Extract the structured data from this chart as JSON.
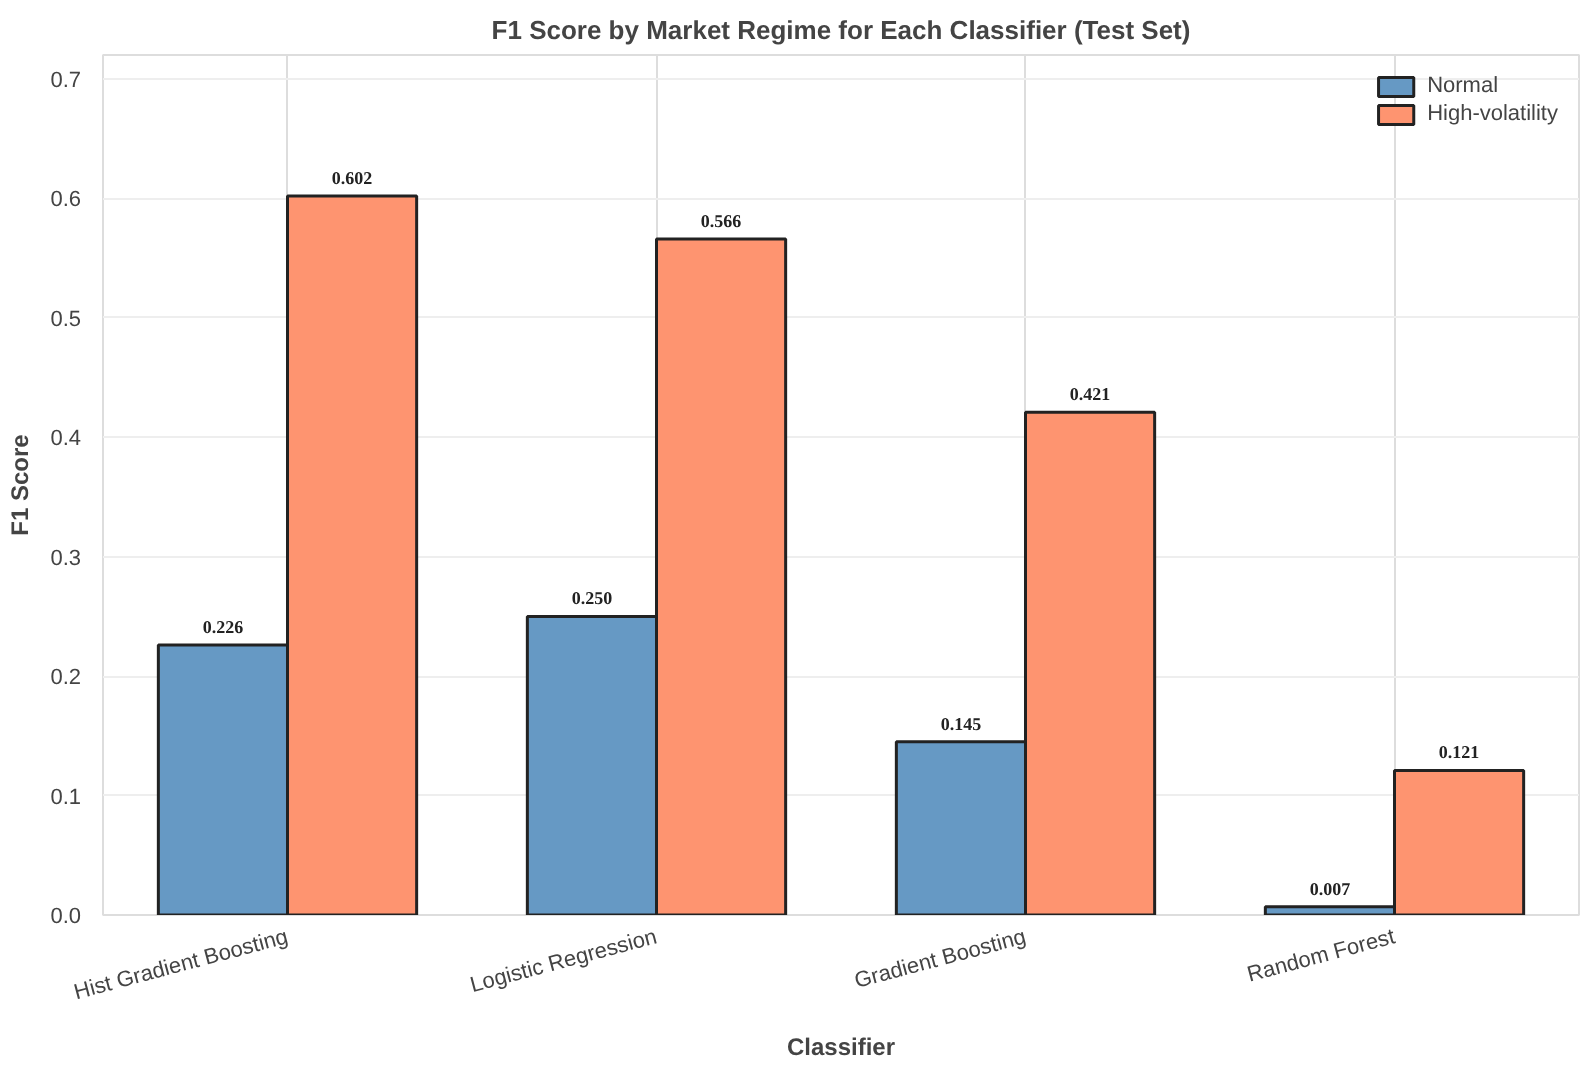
{
  "chart_data": {
    "type": "bar",
    "title": "F1 Score by Market Regime for Each Classifier (Test Set)",
    "xlabel": "Classifier",
    "ylabel": "F1 Score",
    "categories": [
      "Hist Gradient Boosting",
      "Logistic Regression",
      "Gradient Boosting",
      "Random Forest"
    ],
    "series": [
      {
        "name": "Normal",
        "color": "#6699c4",
        "values": [
          0.226,
          0.25,
          0.145,
          0.007
        ],
        "value_labels": [
          "0.226",
          "0.250",
          "0.145",
          "0.007"
        ]
      },
      {
        "name": "High-volatility",
        "color": "#fe9470",
        "values": [
          0.602,
          0.566,
          0.421,
          0.121
        ],
        "value_labels": [
          "0.602",
          "0.566",
          "0.421",
          "0.121"
        ]
      }
    ],
    "ylim": [
      0,
      0.72
    ],
    "yticks": [
      {
        "value": 0,
        "label": "0.0"
      },
      0.1,
      0.2,
      0.3,
      0.4,
      0.5,
      0.6,
      0.7
    ],
    "grid": true,
    "legend": "top right"
  }
}
